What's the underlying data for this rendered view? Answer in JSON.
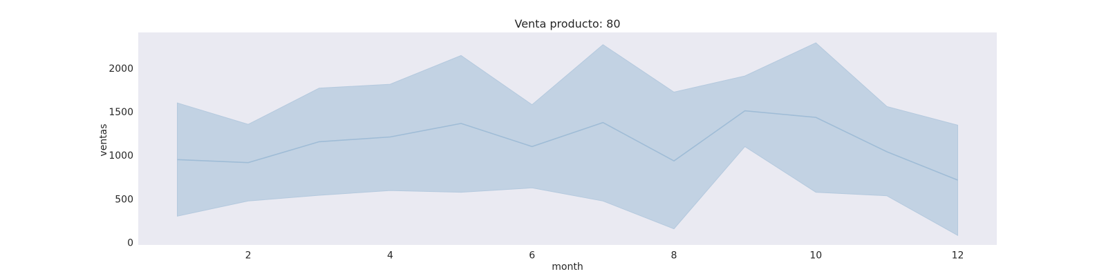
{
  "chart_data": {
    "type": "area",
    "title": "Venta producto: 80",
    "xlabel": "month",
    "ylabel": "ventas",
    "xlim": [
      0.45,
      12.55
    ],
    "ylim": [
      -20,
      2420
    ],
    "xticks": [
      2,
      4,
      6,
      8,
      10,
      12
    ],
    "yticks": [
      0,
      500,
      1000,
      1500,
      2000
    ],
    "grid": false,
    "legend": "none",
    "colors": {
      "plot_background": "#eaeaf2",
      "band_fill": "#b4c9de",
      "line": "#9fbcd6",
      "text": "#262626"
    },
    "x": [
      1,
      2,
      3,
      4,
      5,
      6,
      7,
      8,
      9,
      10,
      11,
      12
    ],
    "series": [
      {
        "values": [
          960,
          925,
          1165,
          1220,
          1375,
          1110,
          1385,
          945,
          1520,
          1445,
          1050,
          725
        ],
        "lower": [
          310,
          485,
          550,
          605,
          585,
          635,
          485,
          165,
          1110,
          585,
          545,
          90
        ],
        "upper": [
          1610,
          1365,
          1780,
          1825,
          2155,
          1590,
          2280,
          1735,
          1920,
          2300,
          1570,
          1355
        ]
      }
    ]
  }
}
